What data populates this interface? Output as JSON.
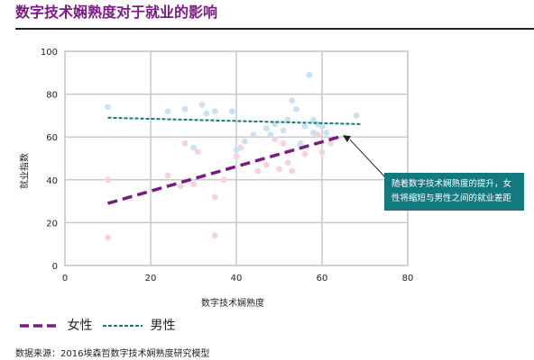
{
  "title": "数字技术娴熟度对于就业的影响",
  "source": "数据来源：2016埃森哲数字技术娴熟度研究模型",
  "callout_text": "随着数字技术娴熟度的提升，女性将缩短与男性之间的就业差距",
  "colors": {
    "title": "#7d1a86",
    "female_line": "#7b1a86",
    "male_line": "#13797e",
    "female_dots": "#f8d1de",
    "male_dots": "#c8e2f2",
    "callout_bg": "#13797e"
  },
  "chart_data": {
    "type": "scatter",
    "xlabel": "数字技术娴熟度",
    "ylabel": "就业指数",
    "xlim": [
      0,
      80
    ],
    "ylim": [
      0,
      100
    ],
    "xticks": [
      0,
      20,
      40,
      60,
      80
    ],
    "yticks": [
      0,
      20,
      40,
      60,
      80,
      100
    ],
    "grid": true,
    "legend_position": "bottom-left",
    "series": [
      {
        "name": "女性",
        "points": [
          [
            10,
            40
          ],
          [
            10,
            13
          ],
          [
            24,
            42
          ],
          [
            27,
            37
          ],
          [
            28,
            57
          ],
          [
            30,
            38
          ],
          [
            31,
            53
          ],
          [
            35,
            32
          ],
          [
            35,
            14
          ],
          [
            37,
            40
          ],
          [
            40,
            51
          ],
          [
            41,
            55
          ],
          [
            45,
            44
          ],
          [
            47,
            47
          ],
          [
            49,
            59
          ],
          [
            50,
            45
          ],
          [
            51,
            57
          ],
          [
            52,
            48
          ],
          [
            53,
            44
          ],
          [
            55,
            56
          ],
          [
            56,
            52
          ],
          [
            59,
            61
          ],
          [
            60,
            53
          ],
          [
            62,
            57
          ]
        ],
        "trend": [
          [
            10,
            29
          ],
          [
            64,
            60
          ]
        ]
      },
      {
        "name": "男性",
        "points": [
          [
            10,
            74
          ],
          [
            24,
            72
          ],
          [
            28,
            73
          ],
          [
            30,
            55
          ],
          [
            32,
            75
          ],
          [
            33,
            71
          ],
          [
            35,
            72
          ],
          [
            39,
            72
          ],
          [
            40,
            54
          ],
          [
            42,
            58
          ],
          [
            44,
            61
          ],
          [
            47,
            64
          ],
          [
            48,
            61
          ],
          [
            49,
            66
          ],
          [
            51,
            63
          ],
          [
            52,
            68
          ],
          [
            53,
            77
          ],
          [
            54,
            73
          ],
          [
            55,
            57
          ],
          [
            56,
            65
          ],
          [
            57,
            89
          ],
          [
            58,
            62
          ],
          [
            58,
            68
          ],
          [
            59,
            66
          ],
          [
            60,
            65
          ],
          [
            61,
            62
          ],
          [
            68,
            70
          ]
        ],
        "trend": [
          [
            10,
            69
          ],
          [
            69,
            66
          ]
        ]
      }
    ],
    "legend": [
      "女性",
      "男性"
    ]
  }
}
